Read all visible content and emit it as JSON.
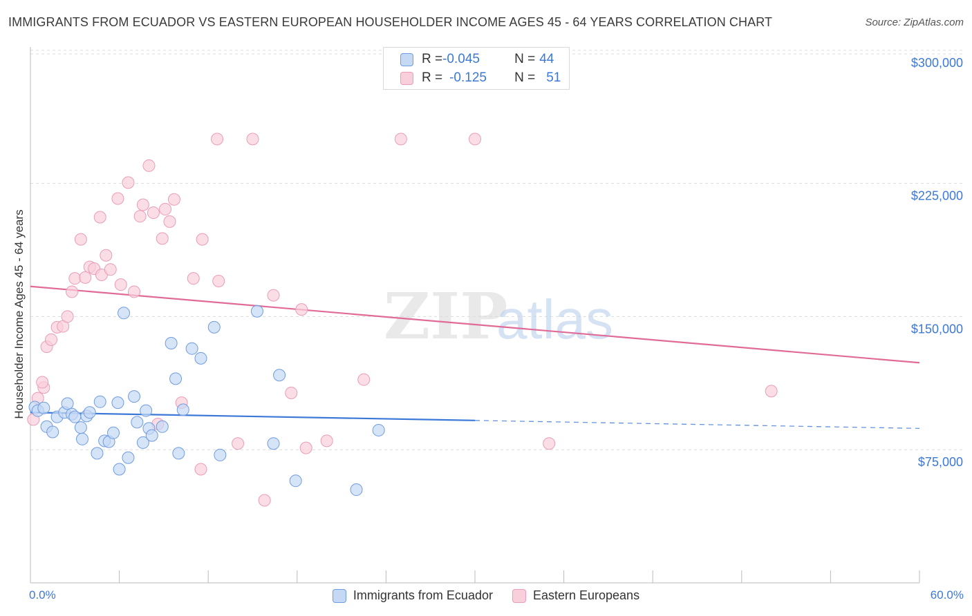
{
  "title": "IMMIGRANTS FROM ECUADOR VS EASTERN EUROPEAN HOUSEHOLDER INCOME AGES 45 - 64 YEARS CORRELATION CHART",
  "source": "Source: ZipAtlas.com",
  "watermark": {
    "zip": "ZIP",
    "atlas": "atlas"
  },
  "colors": {
    "blue": "#3c78d8",
    "blue_fill": "#c5d9f5",
    "blue_stroke": "#6f9be0",
    "pink": "#e06b96",
    "pink_fill": "#f9cfdc",
    "pink_stroke": "#ea9cb8"
  },
  "legend_box": {
    "rows": [
      {
        "r_label": "R = ",
        "r_value": "-0.045",
        "n_label": "N = ",
        "n_value": "44"
      },
      {
        "r_label": "R = ",
        "r_value": "-0.125",
        "n_label": "N = ",
        "n_value": "51"
      }
    ]
  },
  "legend_bottom": [
    "Immigrants from Ecuador",
    "Eastern Europeans"
  ],
  "chart_data": {
    "type": "scatter",
    "xlabel": "",
    "ylabel": "Householder Income Ages 45 - 64 years",
    "xlim": [
      0,
      60
    ],
    "ylim": [
      0,
      305000
    ],
    "x_tick_labels": [
      "0.0%",
      "60.0%"
    ],
    "y_ticks": [
      {
        "value": 75000,
        "label": "$75,000"
      },
      {
        "value": 150000,
        "label": "$150,000"
      },
      {
        "value": 225000,
        "label": "$225,000"
      },
      {
        "value": 300000,
        "label": "$300,000"
      }
    ],
    "grid": "horizontal dashed",
    "series": [
      {
        "name": "Immigrants from Ecuador",
        "color": "#3c78d8",
        "points": [
          [
            0.3,
            99000
          ],
          [
            0.5,
            97000
          ],
          [
            0.9,
            98500
          ],
          [
            1.1,
            88000
          ],
          [
            1.5,
            85000
          ],
          [
            1.8,
            93500
          ],
          [
            2.3,
            96000
          ],
          [
            2.5,
            101000
          ],
          [
            2.8,
            95000
          ],
          [
            3.0,
            93500
          ],
          [
            3.4,
            87500
          ],
          [
            3.5,
            81000
          ],
          [
            3.8,
            94000
          ],
          [
            4.0,
            96000
          ],
          [
            4.5,
            73000
          ],
          [
            4.7,
            102000
          ],
          [
            5.0,
            80000
          ],
          [
            5.3,
            79500
          ],
          [
            5.6,
            84500
          ],
          [
            5.9,
            101500
          ],
          [
            6.0,
            64000
          ],
          [
            6.3,
            152000
          ],
          [
            6.6,
            70500
          ],
          [
            7.0,
            105000
          ],
          [
            7.2,
            90500
          ],
          [
            7.6,
            79000
          ],
          [
            7.8,
            97000
          ],
          [
            8.0,
            87000
          ],
          [
            8.2,
            83000
          ],
          [
            8.9,
            88000
          ],
          [
            9.5,
            135000
          ],
          [
            9.8,
            115000
          ],
          [
            10.0,
            73000
          ],
          [
            10.3,
            97500
          ],
          [
            10.9,
            132000
          ],
          [
            11.5,
            126500
          ],
          [
            12.4,
            144000
          ],
          [
            12.8,
            72000
          ],
          [
            15.3,
            153000
          ],
          [
            16.4,
            78500
          ],
          [
            16.8,
            117000
          ],
          [
            17.9,
            57500
          ],
          [
            22.0,
            52500
          ],
          [
            23.5,
            86000
          ]
        ],
        "trend": {
          "x0": 0,
          "y0": 96000,
          "x1": 60,
          "y1": 87000,
          "solid_until_x": 30
        }
      },
      {
        "name": "Eastern Europeans",
        "color": "#e06b96",
        "points": [
          [
            0.2,
            92000
          ],
          [
            0.5,
            104000
          ],
          [
            0.9,
            110000
          ],
          [
            0.8,
            113000
          ],
          [
            1.1,
            133000
          ],
          [
            1.4,
            137000
          ],
          [
            1.8,
            144000
          ],
          [
            2.2,
            144500
          ],
          [
            2.5,
            150000
          ],
          [
            2.8,
            164000
          ],
          [
            3.0,
            171500
          ],
          [
            3.4,
            193500
          ],
          [
            3.7,
            172000
          ],
          [
            4.0,
            178000
          ],
          [
            4.3,
            177000
          ],
          [
            4.7,
            206000
          ],
          [
            4.8,
            173500
          ],
          [
            5.1,
            184500
          ],
          [
            5.4,
            176500
          ],
          [
            5.9,
            216500
          ],
          [
            6.1,
            168000
          ],
          [
            6.6,
            225500
          ],
          [
            7.0,
            164000
          ],
          [
            7.4,
            206500
          ],
          [
            7.6,
            213000
          ],
          [
            8.0,
            235000
          ],
          [
            8.3,
            208500
          ],
          [
            8.6,
            89500
          ],
          [
            8.9,
            194000
          ],
          [
            9.1,
            210500
          ],
          [
            9.4,
            203500
          ],
          [
            9.7,
            216000
          ],
          [
            10.2,
            101500
          ],
          [
            11.0,
            171500
          ],
          [
            11.5,
            64000
          ],
          [
            11.6,
            193500
          ],
          [
            12.6,
            250000
          ],
          [
            12.7,
            170000
          ],
          [
            14.0,
            78500
          ],
          [
            15.0,
            250000
          ],
          [
            15.8,
            46500
          ],
          [
            16.4,
            162000
          ],
          [
            17.6,
            107000
          ],
          [
            18.3,
            154000
          ],
          [
            18.6,
            76000
          ],
          [
            20.0,
            80000
          ],
          [
            22.5,
            114500
          ],
          [
            25.0,
            250000
          ],
          [
            30.0,
            250000
          ],
          [
            35.0,
            78500
          ],
          [
            50.0,
            108000
          ]
        ],
        "trend": {
          "x0": 0,
          "y0": 167000,
          "x1": 60,
          "y1": 124000
        }
      }
    ]
  }
}
